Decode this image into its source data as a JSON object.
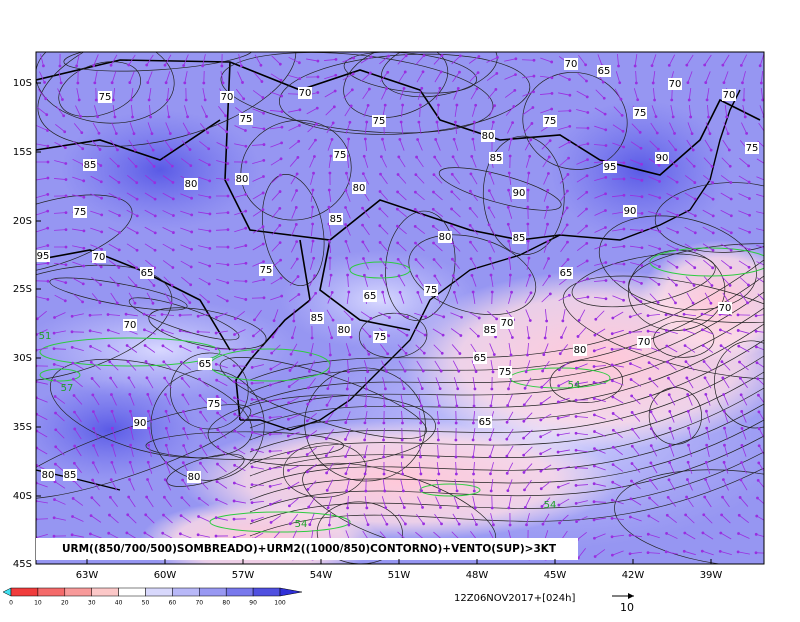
{
  "map": {
    "lat_labels": [
      "10S",
      "15S",
      "20S",
      "25S",
      "30S",
      "35S",
      "40S",
      "45S"
    ],
    "lon_labels": [
      "63W",
      "60W",
      "57W",
      "54W",
      "51W",
      "48W",
      "45W",
      "42W",
      "39W"
    ],
    "title": "URM((850/700/500)SOMBREADO)+URM2((1000/850)CONTORNO)+VENTO(SUP)>3KT",
    "contour_labels": [
      "75",
      "70",
      "70",
      "75",
      "75",
      "85",
      "80",
      "80",
      "75",
      "85",
      "80",
      "80",
      "85",
      "90",
      "85",
      "95",
      "90",
      "70",
      "65",
      "70",
      "75",
      "75",
      "70",
      "75",
      "65",
      "70",
      "90",
      "80",
      "75",
      "70",
      "65",
      "75",
      "90",
      "95",
      "85",
      "80",
      "80",
      "70",
      "65",
      "75",
      "85",
      "80",
      "75",
      "65",
      "75",
      "85",
      "65",
      "75",
      "70",
      "65",
      "80",
      "70",
      "54",
      "54",
      "51",
      "54",
      "57"
    ]
  },
  "colorbar": {
    "labels": [
      0,
      10,
      20,
      30,
      40,
      50,
      60,
      70,
      80,
      90,
      100
    ]
  },
  "timestamp": "12Z06NOV2017+[024h]",
  "vector_scale": "10"
}
